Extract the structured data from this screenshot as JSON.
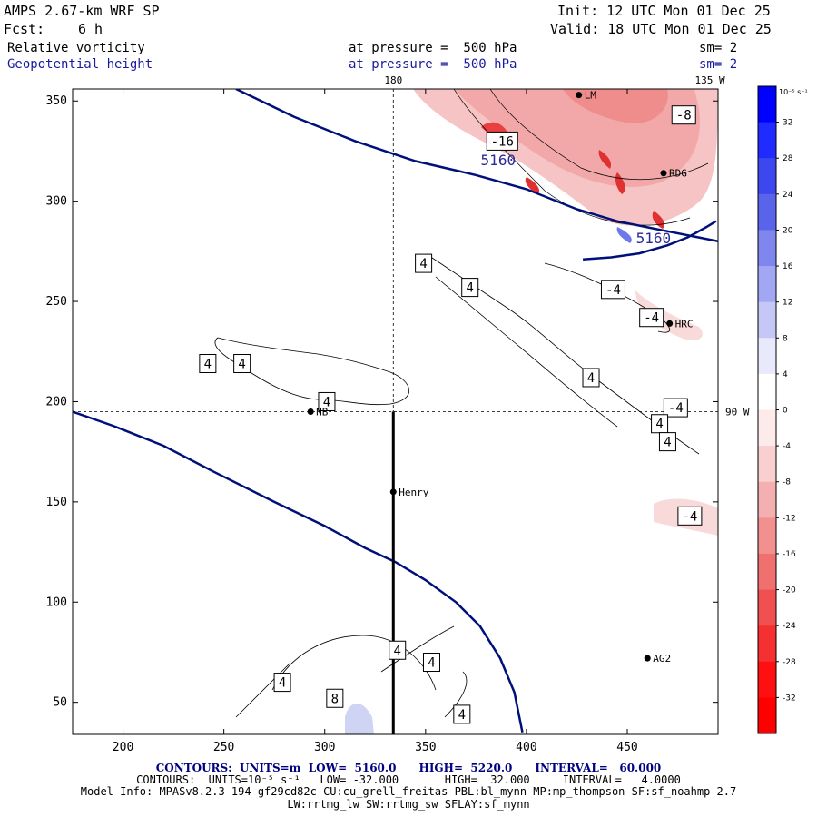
{
  "header": {
    "model": "AMPS 2.67-km WRF SP",
    "fcst_label": "Fcst:",
    "fcst_value": "6 h",
    "init": "Init: 12 UTC Mon 01 Dec 25",
    "valid": "Valid: 18 UTC Mon 01 Dec 25",
    "field1": "Relative vorticity",
    "field2": "Geopotential height",
    "pressure1": "at pressure =  500 hPa",
    "pressure2": "at pressure =  500 hPa",
    "sm1": "sm= 2",
    "sm2": "sm= 2"
  },
  "footer": {
    "line1": "CONTOURS:  UNITS=m  LOW=  5160.0      HIGH=  5220.0      INTERVAL=   60.000",
    "line2": "CONTOURS:  UNITS=10⁻⁵ s⁻¹   LOW= -32.000       HIGH=  32.000     INTERVAL=   4.0000",
    "line3": "Model Info: MPASv8.2.3-194-gf29cd82c CU:cu_grell_freitas PBL:bl_mynn MP:mp_thompson SF:sf_noahmp 2.7",
    "line4": "LW:rrtmg_lw SW:rrtmg_sw SFLAY:sf_mynn"
  },
  "colors": {
    "height_contour": "#00107a",
    "cross_line": "#000000",
    "colorbar_unit": "10⁻⁵ s⁻¹"
  },
  "chart_data": {
    "type": "contour-map",
    "title": "Relative vorticity / Geopotential height at 500 hPa",
    "x_axis": {
      "range": [
        175,
        495
      ],
      "ticks": [
        200,
        250,
        300,
        350,
        400,
        450
      ]
    },
    "y_axis": {
      "range": [
        34,
        356
      ],
      "ticks": [
        50,
        100,
        150,
        200,
        250,
        300,
        350
      ]
    },
    "grid_lines": [
      {
        "label": "180",
        "axis": "x",
        "value": 334
      },
      {
        "label": "135 W",
        "axis": "x",
        "value": 491
      },
      {
        "label": "90 W",
        "axis": "y",
        "value": 195
      }
    ],
    "stations": [
      {
        "name": "LM",
        "x": 426,
        "y": 353
      },
      {
        "name": "RDG",
        "x": 468,
        "y": 314
      },
      {
        "name": "HRC",
        "x": 471,
        "y": 239
      },
      {
        "name": "NB",
        "x": 293,
        "y": 195
      },
      {
        "name": "Henry",
        "x": 334,
        "y": 155
      },
      {
        "name": "AG2",
        "x": 460,
        "y": 72
      }
    ],
    "height_contours": [
      {
        "label": "5160",
        "label_x": 386,
        "label_y": 318,
        "path": [
          [
            256,
            356
          ],
          [
            285,
            342
          ],
          [
            315,
            330
          ],
          [
            345,
            320
          ],
          [
            375,
            313
          ],
          [
            400,
            306
          ],
          [
            425,
            296
          ],
          [
            445,
            290
          ],
          [
            465,
            286
          ],
          [
            485,
            282
          ],
          [
            495,
            280
          ]
        ]
      },
      {
        "label": "5160",
        "label_x": 463,
        "label_y": 279,
        "path": [
          [
            428,
            271
          ],
          [
            442,
            272
          ],
          [
            456,
            274
          ],
          [
            470,
            278
          ],
          [
            480,
            282
          ],
          [
            489,
            287
          ],
          [
            494,
            290
          ]
        ]
      },
      {
        "label": "",
        "label_x": null,
        "label_y": null,
        "path": [
          [
            175,
            195
          ],
          [
            195,
            188
          ],
          [
            220,
            178
          ],
          [
            245,
            165
          ],
          [
            275,
            150
          ],
          [
            300,
            138
          ],
          [
            320,
            127
          ],
          [
            335,
            120
          ],
          [
            350,
            111
          ],
          [
            365,
            100
          ],
          [
            377,
            88
          ],
          [
            387,
            72
          ],
          [
            394,
            55
          ],
          [
            398,
            35
          ]
        ]
      }
    ],
    "vorticity_labels": [
      {
        "text": "-8",
        "x": 478,
        "y": 343
      },
      {
        "text": "-16",
        "x": 388,
        "y": 330
      },
      {
        "text": "4",
        "x": 349,
        "y": 269
      },
      {
        "text": "4",
        "x": 372,
        "y": 257
      },
      {
        "text": "-4",
        "x": 443,
        "y": 256
      },
      {
        "text": "-4",
        "x": 462,
        "y": 242
      },
      {
        "text": "4",
        "x": 242,
        "y": 219
      },
      {
        "text": "4",
        "x": 259,
        "y": 219
      },
      {
        "text": "4",
        "x": 301,
        "y": 200
      },
      {
        "text": "4",
        "x": 432,
        "y": 212
      },
      {
        "text": "-4",
        "x": 474,
        "y": 197
      },
      {
        "text": "4",
        "x": 466,
        "y": 189
      },
      {
        "text": "4",
        "x": 470,
        "y": 180
      },
      {
        "text": "-4",
        "x": 481,
        "y": 143
      },
      {
        "text": "4",
        "x": 336,
        "y": 76
      },
      {
        "text": "4",
        "x": 353,
        "y": 70
      },
      {
        "text": "4",
        "x": 279,
        "y": 60
      },
      {
        "text": "8",
        "x": 305,
        "y": 52
      },
      {
        "text": "4",
        "x": 368,
        "y": 44
      }
    ],
    "cross_section": {
      "x": 334,
      "y_start": 195,
      "y_end": 34
    },
    "colorbar": {
      "levels": [
        32,
        28,
        24,
        20,
        16,
        12,
        8,
        4,
        0,
        -4,
        -8,
        -12,
        -16,
        -20,
        -24,
        -28,
        -32
      ],
      "colors": [
        "#0000ff",
        "#1f2bff",
        "#3c48ee",
        "#5a64ea",
        "#7f86ee",
        "#a2a7f3",
        "#c5c8f7",
        "#e8e9fb",
        "#ffffff",
        "#fdeaea",
        "#f9cfcf",
        "#f4b0b0",
        "#f28f8f",
        "#f07070",
        "#f05050",
        "#f43030",
        "#ff1010",
        "#ff0000"
      ]
    }
  }
}
